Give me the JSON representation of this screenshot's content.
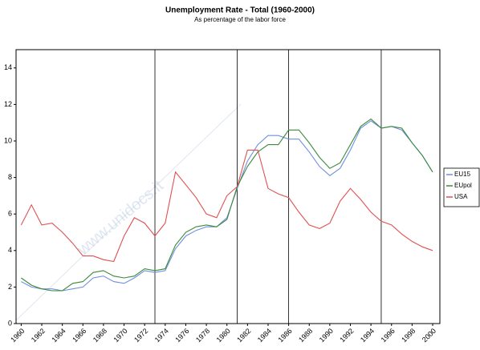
{
  "chart_data": {
    "type": "line",
    "title": "Unemployment Rate - Total (1960-2000)",
    "subtitle": "As percentage of the labor force",
    "watermark": "www.unidocs.it",
    "x": [
      1960,
      1961,
      1962,
      1963,
      1964,
      1965,
      1966,
      1967,
      1968,
      1969,
      1970,
      1971,
      1972,
      1973,
      1974,
      1975,
      1976,
      1977,
      1978,
      1979,
      1980,
      1981,
      1982,
      1983,
      1984,
      1985,
      1986,
      1987,
      1988,
      1989,
      1990,
      1991,
      1992,
      1993,
      1994,
      1995,
      1996,
      1997,
      1998,
      1999,
      2000
    ],
    "series": [
      {
        "name": "EU15",
        "color": "#6f8fe0",
        "values": [
          2.3,
          2.0,
          1.9,
          1.9,
          1.8,
          1.9,
          2.0,
          2.5,
          2.6,
          2.3,
          2.2,
          2.5,
          2.9,
          2.8,
          2.9,
          4.1,
          4.8,
          5.1,
          5.3,
          5.3,
          5.8,
          7.4,
          8.9,
          9.8,
          10.3,
          10.3,
          10.1,
          10.1,
          9.4,
          8.6,
          8.1,
          8.5,
          9.5,
          10.7,
          11.1,
          10.7,
          10.8,
          10.6,
          9.9,
          9.2,
          8.3
        ]
      },
      {
        "name": "EUpol",
        "color": "#3a8a3a",
        "values": [
          2.5,
          2.1,
          1.9,
          1.8,
          1.8,
          2.2,
          2.3,
          2.8,
          2.9,
          2.6,
          2.5,
          2.6,
          3.0,
          2.9,
          3.0,
          4.3,
          5.0,
          5.3,
          5.4,
          5.3,
          5.7,
          7.5,
          8.6,
          9.4,
          9.8,
          9.8,
          10.6,
          10.6,
          9.9,
          9.1,
          8.5,
          8.8,
          9.8,
          10.8,
          11.2,
          10.7,
          10.8,
          10.7,
          9.9,
          9.2,
          8.3
        ]
      },
      {
        "name": "USA",
        "color": "#e05050",
        "values": [
          5.4,
          6.5,
          5.4,
          5.5,
          5.0,
          4.4,
          3.7,
          3.7,
          3.5,
          3.4,
          4.8,
          5.8,
          5.5,
          4.8,
          5.5,
          8.3,
          7.6,
          6.9,
          6.0,
          5.8,
          7.0,
          7.5,
          9.5,
          9.5,
          7.4,
          7.1,
          6.9,
          6.1,
          5.4,
          5.2,
          5.5,
          6.7,
          7.4,
          6.8,
          6.1,
          5.6,
          5.4,
          4.9,
          4.5,
          4.2,
          4.0
        ]
      }
    ],
    "reference_lines": [
      1973,
      1981,
      1986,
      1995
    ],
    "xlim": [
      1959.5,
      2000.7
    ],
    "xticks": [
      1960,
      1962,
      1964,
      1966,
      1968,
      1970,
      1972,
      1974,
      1976,
      1978,
      1980,
      1982,
      1984,
      1986,
      1988,
      1990,
      1992,
      1994,
      1996,
      1998,
      2000
    ],
    "ylim": [
      0,
      15
    ],
    "yticks": [
      0,
      2,
      4,
      6,
      8,
      10,
      12,
      14
    ],
    "grid": false,
    "legend": "right"
  }
}
